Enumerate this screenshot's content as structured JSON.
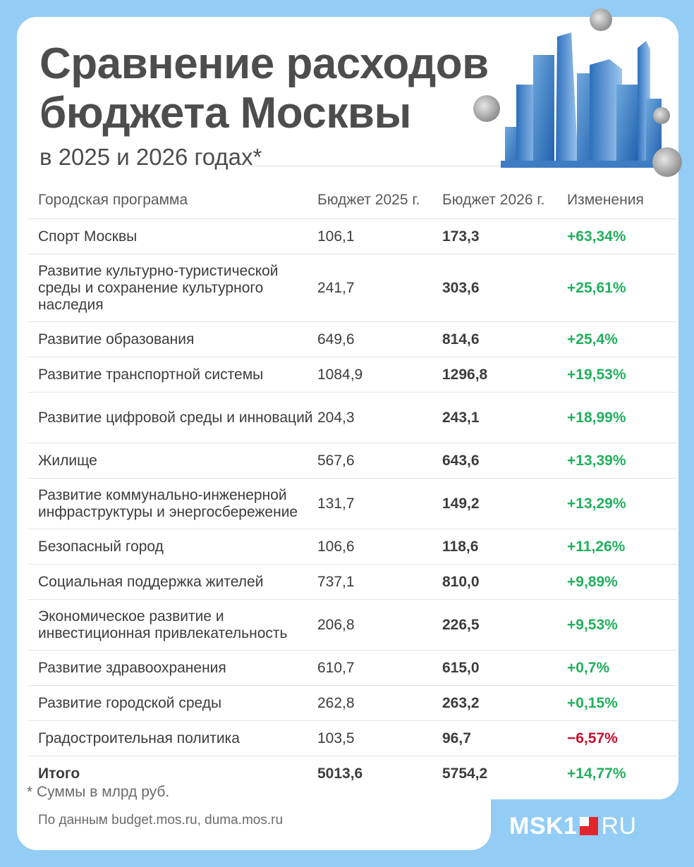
{
  "header": {
    "title_line1": "Сравнение расходов",
    "title_line2": "бюджета Москвы",
    "subtitle": "в 2025 и 2026 годах*"
  },
  "chart_data": {
    "type": "table",
    "columns": [
      "Городская программа",
      "Бюджет 2025 г.",
      "Бюджет 2026 г.",
      "Изменения"
    ],
    "rows": [
      {
        "program": "Спорт Москвы",
        "b2025": "106,1",
        "b2026": "173,3",
        "change": "+63,34%",
        "trend": "up"
      },
      {
        "program": "Развитие культурно-туристической среды и сохранение культурного наследия",
        "b2025": "241,7",
        "b2026": "303,6",
        "change": "+25,61%",
        "trend": "up"
      },
      {
        "program": "Развитие образования",
        "b2025": "649,6",
        "b2026": "814,6",
        "change": "+25,4%",
        "trend": "up"
      },
      {
        "program": "Развитие транспортной системы",
        "b2025": "1084,9",
        "b2026": "1296,8",
        "change": "+19,53%",
        "trend": "up"
      },
      {
        "program": "Развитие цифровой среды и инноваций",
        "b2025": "204,3",
        "b2026": "243,1",
        "change": "+18,99%",
        "trend": "up"
      },
      {
        "program": "Жилище",
        "b2025": "567,6",
        "b2026": "643,6",
        "change": "+13,39%",
        "trend": "up"
      },
      {
        "program": "Развитие коммунально-инженерной инфраструктуры и энергосбережение",
        "b2025": "131,7",
        "b2026": "149,2",
        "change": "+13,29%",
        "trend": "up"
      },
      {
        "program": "Безопасный город",
        "b2025": "106,6",
        "b2026": "118,6",
        "change": "+11,26%",
        "trend": "up"
      },
      {
        "program": "Социальная поддержка жителей",
        "b2025": "737,1",
        "b2026": "810,0",
        "change": "+9,89%",
        "trend": "up"
      },
      {
        "program": "Экономическое развитие и инвестиционная привлекательность",
        "b2025": "206,8",
        "b2026": "226,5",
        "change": "+9,53%",
        "trend": "up"
      },
      {
        "program": "Развитие здравоохранения",
        "b2025": "610,7",
        "b2026": "615,0",
        "change": "+0,7%",
        "trend": "up"
      },
      {
        "program": "Развитие городской среды",
        "b2025": "262,8",
        "b2026": "263,2",
        "change": "+0,15%",
        "trend": "up"
      },
      {
        "program": "Градостроительная политика",
        "b2025": "103,5",
        "b2026": "96,7",
        "change": "−6,57%",
        "trend": "down"
      }
    ],
    "total": {
      "program": "Итого",
      "b2025": "5013,6",
      "b2026": "5754,2",
      "change": "+14,77%",
      "trend": "up"
    },
    "colors": {
      "positive": "#22b05e",
      "negative": "#c8102e"
    }
  },
  "footer": {
    "footnote": "* Суммы в млрд руб.",
    "source": "По данным budget.mos.ru, duma.mos.ru"
  },
  "logo": {
    "left": "MSK1",
    "right": "RU",
    "accent_color": "#e2262d"
  }
}
